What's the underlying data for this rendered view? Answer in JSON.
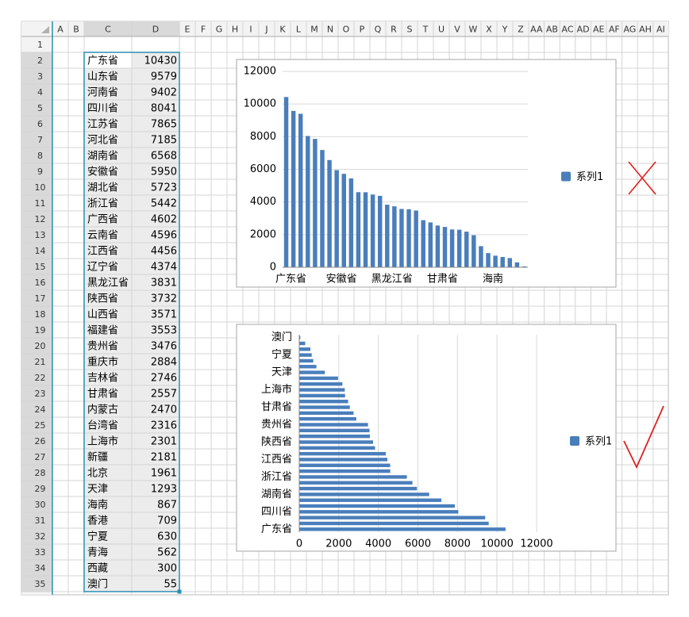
{
  "sheet": {
    "columns": [
      "A",
      "B",
      "C",
      "D",
      "E",
      "F",
      "G",
      "H",
      "I",
      "J",
      "K",
      "L",
      "M",
      "N",
      "O",
      "P",
      "Q",
      "R",
      "S",
      "T",
      "U",
      "V",
      "W",
      "X",
      "Y",
      "Z",
      "AA",
      "AB",
      "AC",
      "AD",
      "AE",
      "AF",
      "AG",
      "AH",
      "AI"
    ],
    "row_numbers": [
      1,
      2,
      3,
      4,
      5,
      6,
      7,
      8,
      9,
      10,
      11,
      12,
      13,
      14,
      15,
      16,
      17,
      18,
      19,
      20,
      21,
      22,
      23,
      24,
      25,
      26,
      27,
      28,
      29,
      30,
      31,
      32,
      33,
      34,
      35
    ],
    "data": [
      [
        "广东省",
        10430
      ],
      [
        "山东省",
        9579
      ],
      [
        "河南省",
        9402
      ],
      [
        "四川省",
        8041
      ],
      [
        "江苏省",
        7865
      ],
      [
        "河北省",
        7185
      ],
      [
        "湖南省",
        6568
      ],
      [
        "安徽省",
        5950
      ],
      [
        "湖北省",
        5723
      ],
      [
        "浙江省",
        5442
      ],
      [
        "广西省",
        4602
      ],
      [
        "云南省",
        4596
      ],
      [
        "江西省",
        4456
      ],
      [
        "辽宁省",
        4374
      ],
      [
        "黑龙江省",
        3831
      ],
      [
        "陕西省",
        3732
      ],
      [
        "山西省",
        3571
      ],
      [
        "福建省",
        3553
      ],
      [
        "贵州省",
        3476
      ],
      [
        "重庆市",
        2884
      ],
      [
        "吉林省",
        2746
      ],
      [
        "甘肃省",
        2557
      ],
      [
        "内蒙古",
        2470
      ],
      [
        "台湾省",
        2316
      ],
      [
        "上海市",
        2301
      ],
      [
        "新疆",
        2181
      ],
      [
        "北京",
        1961
      ],
      [
        "天津",
        1293
      ],
      [
        "海南",
        867
      ],
      [
        "香港",
        709
      ],
      [
        "宁夏",
        630
      ],
      [
        "青海",
        562
      ],
      [
        "西藏",
        300
      ],
      [
        "澳门",
        55
      ]
    ]
  },
  "chart_data": [
    {
      "type": "bar",
      "orientation": "vertical",
      "categories": [
        "广东省",
        null,
        null,
        null,
        null,
        null,
        null,
        "安徽省",
        null,
        null,
        null,
        null,
        null,
        null,
        "黑龙江省",
        null,
        null,
        null,
        null,
        null,
        null,
        "甘肃省",
        null,
        null,
        null,
        null,
        null,
        null,
        "海南",
        null,
        null,
        null,
        null,
        null
      ],
      "series": [
        {
          "name": "系列1",
          "color": "#4a7ebb",
          "values": [
            10430,
            9579,
            9402,
            8041,
            7865,
            7185,
            6568,
            5950,
            5723,
            5442,
            4602,
            4596,
            4456,
            4374,
            3831,
            3732,
            3571,
            3553,
            3476,
            2884,
            2746,
            2557,
            2470,
            2316,
            2301,
            2181,
            1961,
            1293,
            867,
            709,
            630,
            562,
            300,
            55
          ]
        }
      ],
      "ylim": [
        0,
        12000
      ],
      "yticks": [
        0,
        2000,
        4000,
        6000,
        8000,
        10000,
        12000
      ],
      "grid": true,
      "legend": "right"
    },
    {
      "type": "bar",
      "orientation": "horizontal",
      "categories": [
        "广东省",
        null,
        null,
        "四川省",
        null,
        null,
        "湖南省",
        null,
        null,
        "浙江省",
        null,
        null,
        "江西省",
        null,
        null,
        "陕西省",
        null,
        null,
        "贵州省",
        null,
        null,
        "甘肃省",
        null,
        null,
        "上海市",
        null,
        null,
        "天津",
        null,
        null,
        "宁夏",
        null,
        null,
        "澳门"
      ],
      "series": [
        {
          "name": "系列1",
          "color": "#4a7ebb",
          "values": [
            10430,
            9579,
            9402,
            8041,
            7865,
            7185,
            6568,
            5950,
            5723,
            5442,
            4602,
            4596,
            4456,
            4374,
            3831,
            3732,
            3571,
            3553,
            3476,
            2884,
            2746,
            2557,
            2470,
            2316,
            2301,
            2181,
            1961,
            1293,
            867,
            709,
            630,
            562,
            300,
            55
          ]
        }
      ],
      "xlim": [
        0,
        12000
      ],
      "xticks": [
        0,
        2000,
        4000,
        6000,
        8000,
        10000,
        12000
      ],
      "grid": true,
      "legend": "right"
    }
  ]
}
